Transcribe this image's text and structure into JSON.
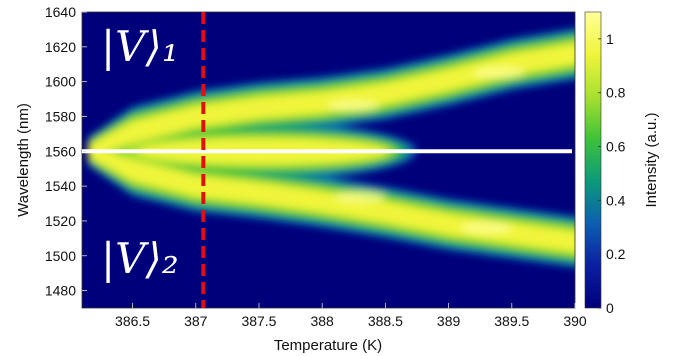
{
  "chart_data": {
    "type": "heatmap",
    "title": "",
    "xlabel": "Temperature (K)",
    "ylabel": "Wavelength (nm)",
    "colorbar_label": "Intensity (a.u.)",
    "xlim": [
      386.1,
      390.0
    ],
    "ylim": [
      1470,
      1640
    ],
    "zlim": [
      0,
      1.1
    ],
    "x_ticks": [
      386.5,
      387,
      387.5,
      388,
      388.5,
      389,
      389.5,
      390
    ],
    "x_tick_labels": [
      "386.5",
      "387",
      "387.5",
      "388",
      "388.5",
      "389",
      "389.5",
      "390"
    ],
    "y_ticks": [
      1480,
      1500,
      1520,
      1540,
      1560,
      1580,
      1600,
      1620,
      1640
    ],
    "y_tick_labels": [
      "1480",
      "1500",
      "1520",
      "1540",
      "1560",
      "1580",
      "1600",
      "1620",
      "1640"
    ],
    "colorbar_ticks": [
      0,
      0.2,
      0.4,
      0.6,
      0.8,
      1
    ],
    "colorbar_tick_labels": [
      "0",
      "0.2",
      "0.4",
      "0.6",
      "0.8",
      "1"
    ],
    "colormap": [
      "#00007a",
      "#0a1fa0",
      "#0d5fb0",
      "#0c9a7a",
      "#3fc23a",
      "#a8e030",
      "#f0f53a",
      "#ffff9a"
    ],
    "branches": {
      "center_wavelength": 1560,
      "onset_temperature": 386.15,
      "upper_branch": {
        "x": [
          386.15,
          386.5,
          387,
          387.5,
          388,
          388.5,
          389,
          389.5,
          390
        ],
        "y": [
          1560,
          1571,
          1580,
          1585,
          1588,
          1593,
          1601,
          1610,
          1616
        ]
      },
      "lower_branch": {
        "x": [
          386.15,
          386.5,
          387,
          387.5,
          388,
          388.5,
          389,
          389.5,
          390
        ],
        "y": [
          1560,
          1549,
          1540,
          1536,
          1531,
          1525,
          1518,
          1513,
          1508
        ]
      }
    },
    "annotations": {
      "horizontal_line": {
        "y": 1560,
        "color": "#ffffff"
      },
      "vertical_dashed_line": {
        "x": 387.06,
        "color": "#e01010"
      },
      "ket_upper": {
        "text": "|V⟩₁",
        "x": 386.25,
        "y": 1612
      },
      "ket_lower": {
        "text": "|V⟩₂",
        "x": 386.25,
        "y": 1490
      }
    }
  }
}
